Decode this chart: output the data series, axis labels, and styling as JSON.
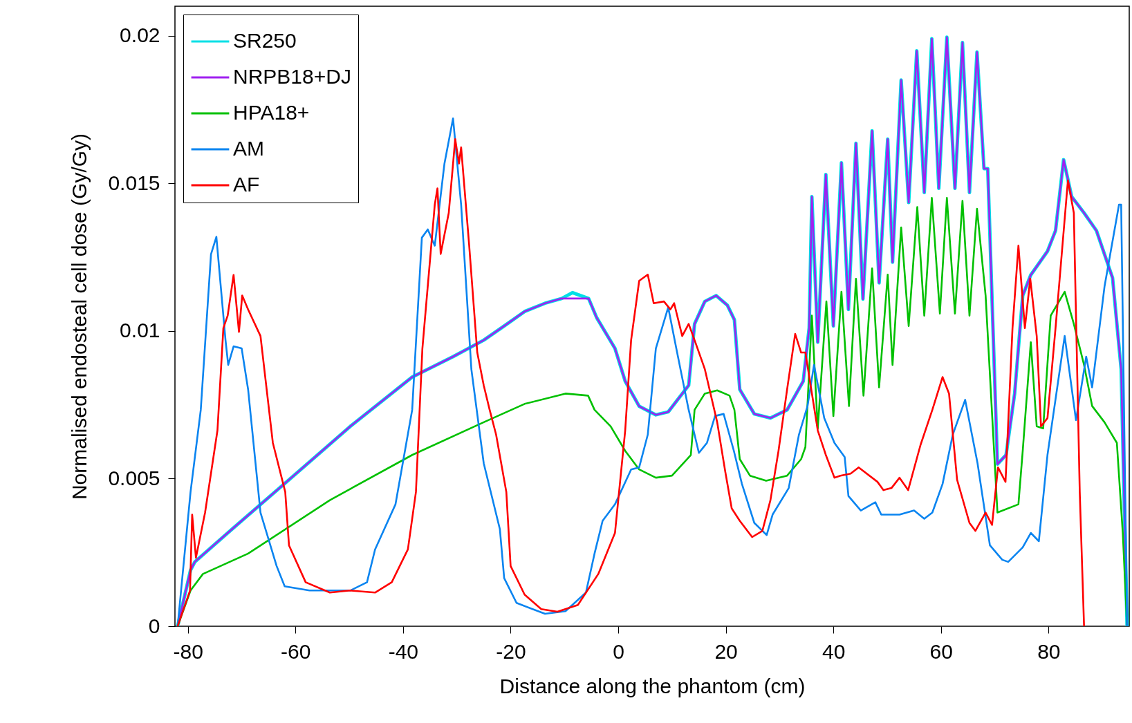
{
  "chart_data": {
    "type": "line",
    "xlabel": "Distance along the phantom (cm)",
    "ylabel": "Normalised endosteal cell dose (Gy/Gy)",
    "xlim": [
      -82.4,
      95
    ],
    "xticks": [
      -80,
      -60,
      -40,
      -20,
      0,
      20,
      40,
      60,
      80
    ],
    "ylim": [
      0,
      0.021
    ],
    "yticks": [
      0,
      0.005,
      0.01,
      0.015,
      0.02
    ],
    "grid": false,
    "legend": "top left",
    "line_style": "solid",
    "series": [
      {
        "name": "SR250",
        "color": "#00e0e6",
        "x": [
          -81.9,
          -79.5,
          -78.7,
          -72.6,
          -61.2,
          -49.8,
          -38.3,
          -30.7,
          -25,
          -21.2,
          -17.4,
          -13.6,
          -10.5,
          -8.5,
          -5.5,
          -4.0,
          -0.6,
          1.3,
          3.9,
          7.0,
          9.3,
          13.1,
          14.2,
          16.1,
          18.2,
          20.3,
          21.6,
          22.6,
          25.3,
          28.3,
          31.4,
          34.4,
          35.5,
          36.0,
          37.1,
          38.6,
          40.0,
          41.5,
          42.8,
          44.2,
          45.5,
          47.2,
          48.5,
          50.1,
          51.0,
          52.6,
          54.0,
          55.5,
          56.9,
          58.3,
          59.6,
          61.1,
          62.6,
          64.0,
          65.3,
          66.7,
          68.0,
          68.7,
          70.5,
          72.1,
          73.7,
          75.2,
          76.7,
          79.8,
          81.3,
          82.8,
          84.3,
          86.6,
          88.9,
          91.9,
          93.5,
          94.6
        ],
        "values": [
          0,
          0.0019,
          0.00218,
          0.00316,
          0.00496,
          0.00677,
          0.00844,
          0.00913,
          0.00969,
          0.01017,
          0.01066,
          0.01094,
          0.0111,
          0.0113,
          0.0111,
          0.01045,
          0.00941,
          0.0083,
          0.00745,
          0.00716,
          0.00726,
          0.00816,
          0.01024,
          0.011,
          0.0112,
          0.01087,
          0.01038,
          0.00802,
          0.00719,
          0.00705,
          0.00733,
          0.0083,
          0.0101,
          0.01455,
          0.00962,
          0.0153,
          0.01017,
          0.0157,
          0.01073,
          0.01636,
          0.01108,
          0.01678,
          0.01163,
          0.0165,
          0.01233,
          0.0185,
          0.01435,
          0.01949,
          0.01469,
          0.0199,
          0.01483,
          0.01995,
          0.01483,
          0.01977,
          0.01469,
          0.01945,
          0.0155,
          0.0155,
          0.00549,
          0.0058,
          0.00788,
          0.0112,
          0.0119,
          0.0127,
          0.0134,
          0.0158,
          0.01455,
          0.014,
          0.0134,
          0.0118,
          0.0087,
          0
        ]
      },
      {
        "name": "NRPB18+DJ",
        "color": "#a020f0",
        "x": [
          -81.9,
          -79.5,
          -78.7,
          -72.6,
          -61.2,
          -49.8,
          -38.3,
          -30.7,
          -25,
          -21.2,
          -17.4,
          -13.6,
          -10.5,
          -5.5,
          -4.0,
          -0.6,
          1.3,
          3.9,
          7.0,
          9.3,
          13.1,
          14.2,
          16.1,
          18.2,
          20.3,
          21.6,
          22.6,
          25.3,
          28.3,
          31.4,
          34.4,
          35.5,
          36.0,
          37.1,
          38.6,
          40.0,
          41.5,
          42.8,
          44.2,
          45.5,
          47.2,
          48.5,
          50.1,
          51.0,
          52.6,
          54.0,
          55.5,
          56.9,
          58.3,
          59.6,
          61.1,
          62.6,
          64.0,
          65.3,
          66.7,
          68.0,
          68.7,
          70.5,
          72.1,
          73.7,
          75.2,
          76.7,
          79.8,
          81.3,
          82.8,
          84.3,
          86.6,
          88.9,
          91.9,
          93.5,
          94.6
        ],
        "values": [
          0,
          0.0019,
          0.00218,
          0.00316,
          0.00496,
          0.00677,
          0.00844,
          0.00913,
          0.00969,
          0.01017,
          0.01066,
          0.01094,
          0.0111,
          0.0111,
          0.01045,
          0.00941,
          0.0083,
          0.00745,
          0.00716,
          0.00726,
          0.00816,
          0.01024,
          0.011,
          0.0112,
          0.01087,
          0.01038,
          0.00802,
          0.00719,
          0.00705,
          0.00733,
          0.0083,
          0.0101,
          0.01455,
          0.00962,
          0.0153,
          0.01017,
          0.0157,
          0.01073,
          0.01636,
          0.01108,
          0.01678,
          0.01163,
          0.0165,
          0.01233,
          0.0185,
          0.01435,
          0.01949,
          0.01469,
          0.0199,
          0.01483,
          0.01995,
          0.01483,
          0.01977,
          0.01469,
          0.01945,
          0.0155,
          0.0155,
          0.00549,
          0.0058,
          0.00788,
          0.0112,
          0.0119,
          0.0127,
          0.0134,
          0.0158,
          0.01455,
          0.014,
          0.0134,
          0.0118,
          0.0087,
          0
        ]
      },
      {
        "name": "HPA18+",
        "color": "#00c000",
        "x": [
          -81.9,
          -79.5,
          -77.2,
          -68.8,
          -53.6,
          -38.3,
          -25,
          -17.4,
          -9.8,
          -5.6,
          -4.4,
          -1.4,
          1.3,
          3.9,
          7.0,
          10.0,
          13.5,
          14.2,
          16.1,
          18.4,
          20.7,
          21.6,
          22.6,
          24.5,
          27.5,
          31.4,
          34.0,
          34.8,
          36.0,
          37.1,
          38.7,
          40.0,
          41.5,
          42.9,
          44.2,
          45.6,
          47.2,
          48.5,
          50.1,
          51.0,
          52.6,
          54.0,
          55.6,
          56.9,
          58.3,
          59.8,
          61.1,
          62.6,
          64.0,
          65.3,
          66.7,
          68.3,
          70.5,
          74.4,
          75.2,
          76.7,
          77.8,
          79.0,
          80.4,
          83.0,
          84.7,
          86.6,
          88.1,
          90.4,
          92.7,
          93.8,
          94.6
        ],
        "values": [
          0,
          0.00121,
          0.00177,
          0.00246,
          0.00427,
          0.0058,
          0.00691,
          0.00753,
          0.00788,
          0.00781,
          0.00733,
          0.00677,
          0.00594,
          0.00531,
          0.00503,
          0.0051,
          0.0058,
          0.00733,
          0.00788,
          0.00799,
          0.00781,
          0.00733,
          0.00566,
          0.0051,
          0.00493,
          0.0051,
          0.00566,
          0.00607,
          0.01052,
          0.0067,
          0.011,
          0.00712,
          0.01133,
          0.00746,
          0.01177,
          0.00781,
          0.01212,
          0.00809,
          0.01191,
          0.00885,
          0.01351,
          0.01017,
          0.0142,
          0.01052,
          0.01451,
          0.01059,
          0.01451,
          0.01059,
          0.01441,
          0.01052,
          0.01414,
          0.0112,
          0.00385,
          0.00413,
          0.00594,
          0.00962,
          0.00677,
          0.0067,
          0.01052,
          0.01133,
          0.01024,
          0.00885,
          0.00746,
          0.00691,
          0.00621,
          0.00316,
          0
        ]
      },
      {
        "name": "AM",
        "color": "#0a84f0",
        "x": [
          -81.9,
          -79.5,
          -77.6,
          -75.7,
          -74.7,
          -73.0,
          -72.5,
          -71.5,
          -70.0,
          -68.8,
          -66.5,
          -63.5,
          -62.0,
          -57.4,
          -49.8,
          -46.7,
          -45.2,
          -41.4,
          -38.3,
          -36.5,
          -35.4,
          -34.1,
          -32.3,
          -30.7,
          -29.2,
          -27.3,
          -25,
          -22,
          -21.2,
          -18.9,
          -13.6,
          -9.8,
          -6.0,
          -4.4,
          -2.9,
          -0.6,
          2.4,
          3.9,
          5.5,
          7.0,
          9.3,
          10.8,
          13.1,
          15.0,
          16.5,
          18.0,
          19.6,
          21.5,
          23.0,
          25.3,
          27.6,
          28.7,
          31.7,
          33.6,
          35.2,
          36.4,
          38.3,
          40.2,
          42.1,
          42.8,
          45.1,
          47.8,
          48.9,
          52.3,
          55.0,
          56.9,
          58.4,
          60.3,
          62.2,
          64.5,
          66.8,
          69.1,
          71.4,
          72.5,
          75.2,
          76.7,
          78.2,
          79.8,
          83.0,
          85.1,
          87.0,
          88.1,
          90.4,
          93.1,
          93.5,
          94.6
        ],
        "values": [
          0,
          0.00455,
          0.00733,
          0.0126,
          0.01319,
          0.00969,
          0.00885,
          0.00948,
          0.00941,
          0.00802,
          0.00385,
          0.00204,
          0.00135,
          0.00121,
          0.00121,
          0.00149,
          0.0026,
          0.00413,
          0.00733,
          0.01316,
          0.01344,
          0.01289,
          0.01567,
          0.0172,
          0.01428,
          0.00871,
          0.00552,
          0.00329,
          0.00163,
          0.00079,
          0.00042,
          0.00051,
          0.00114,
          0.00246,
          0.00357,
          0.00413,
          0.00531,
          0.00538,
          0.00649,
          0.00941,
          0.0108,
          0.00941,
          0.00733,
          0.00587,
          0.00621,
          0.00712,
          0.00719,
          0.00594,
          0.00482,
          0.0035,
          0.00309,
          0.00378,
          0.00468,
          0.00649,
          0.00746,
          0.00885,
          0.00705,
          0.00621,
          0.00573,
          0.00441,
          0.00392,
          0.0042,
          0.00378,
          0.00378,
          0.00392,
          0.00364,
          0.00385,
          0.00482,
          0.00649,
          0.00767,
          0.00552,
          0.00274,
          0.00225,
          0.00218,
          0.00267,
          0.00316,
          0.00288,
          0.0058,
          0.00983,
          0.00698,
          0.00913,
          0.00809,
          0.0115,
          0.01428,
          0.01428,
          0
        ]
      },
      {
        "name": "AF",
        "color": "#ff0000",
        "x": [
          -81.9,
          -79.6,
          -79.2,
          -78.5,
          -76.8,
          -74.5,
          -73.4,
          -72.6,
          -71.5,
          -70.5,
          -69.9,
          -68.8,
          -66.5,
          -64.2,
          -61.9,
          -61.2,
          -58.1,
          -53.6,
          -49.8,
          -45.2,
          -42.1,
          -39.1,
          -37.6,
          -36.4,
          -34.1,
          -33.6,
          -33.0,
          -31.5,
          -30.3,
          -29.6,
          -29.2,
          -27.7,
          -26.2,
          -25,
          -23.9,
          -22.7,
          -20.8,
          -20.0,
          -17.4,
          -14.3,
          -11.3,
          -7.5,
          -3.7,
          -0.6,
          1.3,
          2.4,
          3.9,
          5.5,
          6.6,
          8.5,
          9.7,
          10.4,
          11.9,
          13.1,
          14.2,
          16.1,
          18.4,
          19.9,
          21.1,
          22.6,
          24.9,
          26.8,
          28.3,
          29.8,
          31.4,
          32.9,
          34.0,
          34.8,
          37.1,
          38.6,
          40.2,
          41.3,
          43.2,
          44.7,
          48.2,
          49.3,
          50.8,
          52.3,
          53.9,
          56.2,
          58.4,
          60.3,
          61.5,
          63.0,
          65.3,
          66.4,
          68.3,
          69.5,
          70.6,
          72.0,
          73.3,
          74.4,
          75.6,
          76.6,
          77.8,
          78.6,
          79.8,
          81.3,
          83.6,
          84.7,
          85.8,
          86.6
        ],
        "values": [
          0,
          0.00121,
          0.00378,
          0.00232,
          0.00385,
          0.00663,
          0.0101,
          0.01052,
          0.0119,
          0.00997,
          0.0112,
          0.01073,
          0.00983,
          0.00621,
          0.00455,
          0.00274,
          0.00149,
          0.00114,
          0.00121,
          0.00114,
          0.00149,
          0.0026,
          0.00455,
          0.00941,
          0.01428,
          0.01483,
          0.01261,
          0.014,
          0.0165,
          0.01567,
          0.01622,
          0.01289,
          0.00927,
          0.00816,
          0.00733,
          0.00649,
          0.00455,
          0.00204,
          0.00107,
          0.00058,
          0.00049,
          0.00072,
          0.00177,
          0.00316,
          0.00663,
          0.00969,
          0.0117,
          0.01191,
          0.01094,
          0.011,
          0.01073,
          0.01094,
          0.00983,
          0.01024,
          0.00969,
          0.00871,
          0.00691,
          0.00524,
          0.00399,
          0.00357,
          0.00302,
          0.00323,
          0.00427,
          0.00594,
          0.00802,
          0.0099,
          0.00927,
          0.00927,
          0.00663,
          0.0058,
          0.00503,
          0.0051,
          0.00517,
          0.00538,
          0.00489,
          0.00461,
          0.00468,
          0.00503,
          0.00461,
          0.00614,
          0.00733,
          0.00844,
          0.00788,
          0.00496,
          0.0035,
          0.00323,
          0.00385,
          0.00343,
          0.00538,
          0.00489,
          0.0101,
          0.01289,
          0.0101,
          0.01177,
          0.00983,
          0.00677,
          0.00705,
          0.0101,
          0.0151,
          0.014,
          0.00455,
          0
        ]
      }
    ]
  }
}
